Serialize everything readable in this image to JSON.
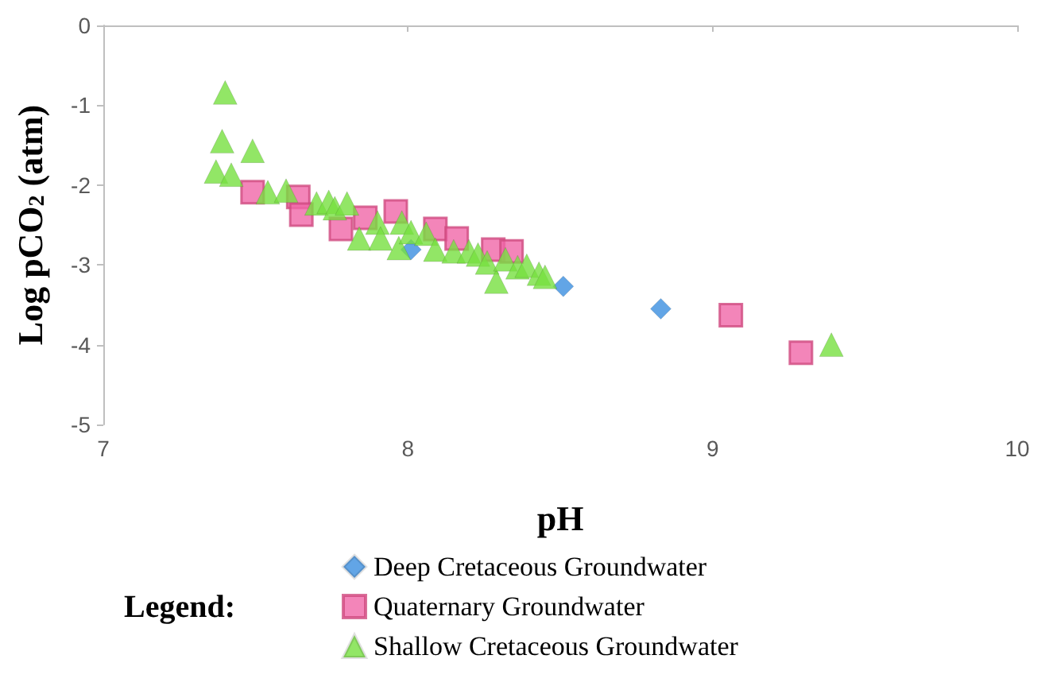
{
  "chart_data": {
    "type": "scatter",
    "xlabel": "pH",
    "ylabel": "Log pCO$_{2}$ (atm)",
    "legend_title": "Legend:",
    "legend": "bottom",
    "grid": false,
    "xlim": [
      7,
      10
    ],
    "xticks": [
      7,
      8,
      9,
      10
    ],
    "ylim": [
      -5,
      0
    ],
    "yticks": [
      -5,
      -4,
      -3,
      -2,
      -1,
      0
    ],
    "series": [
      {
        "name": "Deep Cretaceous Groundwater",
        "color": "#3b8fe0",
        "marker": "diamond",
        "x": [
          8.01,
          8.28,
          8.46,
          8.51,
          8.83
        ],
        "values": [
          -2.81,
          null,
          null,
          -3.27,
          -3.55
        ]
      },
      {
        "name": "Quaternary Groundwater",
        "color": "#f066a8",
        "marker": "square",
        "x": [
          7.49,
          7.64,
          7.65,
          7.78,
          7.86,
          7.96,
          8.09,
          8.16,
          8.23,
          8.28,
          8.34,
          9.06,
          9.29
        ],
        "values": [
          -2.09,
          -2.15,
          -2.37,
          -2.55,
          -2.41,
          -2.33,
          -2.55,
          -2.67,
          null,
          -2.81,
          -2.83,
          -3.63,
          -4.1
        ]
      },
      {
        "name": "Shallow Cretaceous Groundwater",
        "color": "#77e040",
        "marker": "triangle",
        "x": [
          7.4,
          7.39,
          7.49,
          7.37,
          7.42,
          7.54,
          7.6,
          7.7,
          7.74,
          7.76,
          7.8,
          7.84,
          7.9,
          7.91,
          7.97,
          7.98,
          8.01,
          8.06,
          8.09,
          8.15,
          8.2,
          8.23,
          8.26,
          8.29,
          8.32,
          8.36,
          8.39,
          8.43,
          8.45,
          9.39
        ],
        "values": [
          -0.84,
          -1.45,
          -1.57,
          -1.83,
          -1.87,
          -2.09,
          -2.07,
          -2.23,
          -2.21,
          -2.29,
          -2.23,
          -2.67,
          -2.47,
          -2.67,
          -2.79,
          -2.47,
          -2.59,
          -2.61,
          -2.81,
          -2.83,
          -2.83,
          -2.87,
          -2.97,
          -3.21,
          -2.93,
          -3.03,
          -3.01,
          -3.11,
          -3.15,
          -4.0
        ]
      }
    ]
  }
}
